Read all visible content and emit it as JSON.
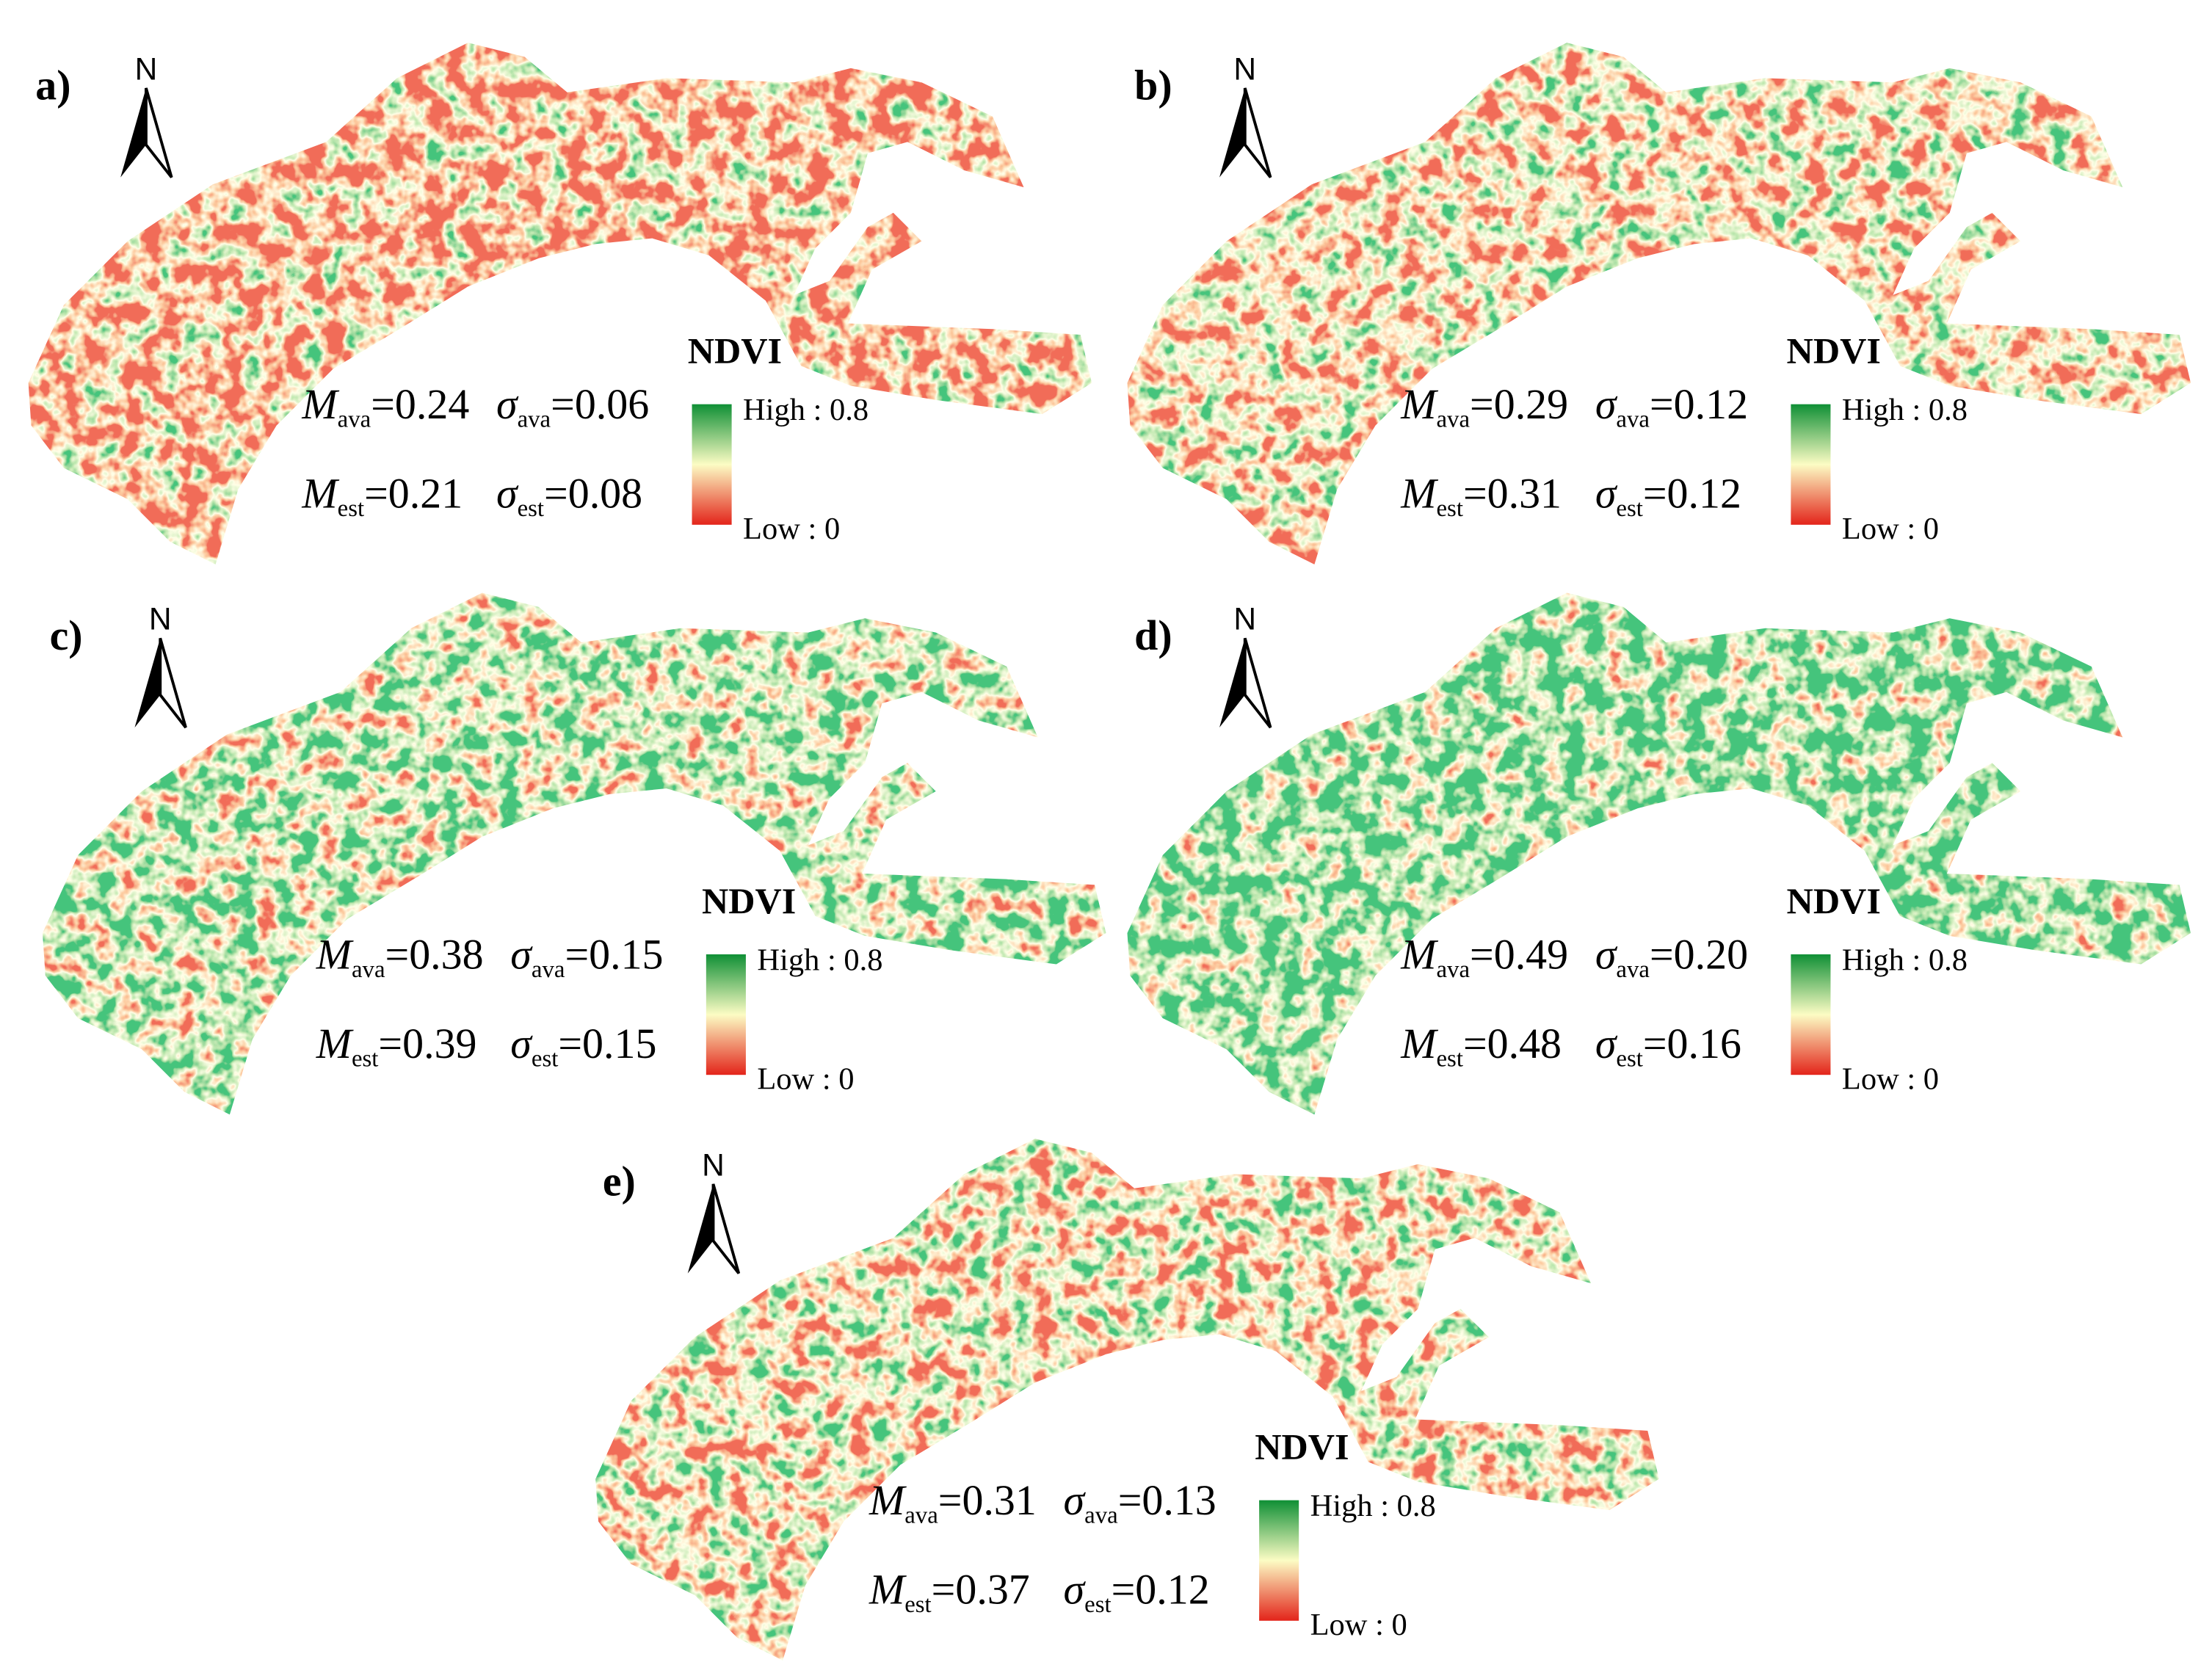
{
  "symbols": {
    "M": "M",
    "sigma": "σ",
    "ava": "ava",
    "est": "est",
    "equals": "="
  },
  "panels": [
    {
      "label": "a)",
      "north": "N",
      "legend": {
        "title": "NDVI",
        "high": "High : 0.8",
        "low": "Low : 0"
      },
      "stats": {
        "m_ava": "0.24",
        "s_ava": "0.06",
        "m_est": "0.21",
        "s_est": "0.08"
      }
    },
    {
      "label": "b)",
      "north": "N",
      "legend": {
        "title": "NDVI",
        "high": "High : 0.8",
        "low": "Low : 0"
      },
      "stats": {
        "m_ava": "0.29",
        "s_ava": "0.12",
        "m_est": "0.31",
        "s_est": "0.12"
      }
    },
    {
      "label": "c)",
      "north": "N",
      "legend": {
        "title": "NDVI",
        "high": "High : 0.8",
        "low": "Low : 0"
      },
      "stats": {
        "m_ava": "0.38",
        "s_ava": "0.15",
        "m_est": "0.39",
        "s_est": "0.15"
      }
    },
    {
      "label": "d)",
      "north": "N",
      "legend": {
        "title": "NDVI",
        "high": "High : 0.8",
        "low": "Low : 0"
      },
      "stats": {
        "m_ava": "0.49",
        "s_ava": "0.20",
        "m_est": "0.48",
        "s_est": "0.16"
      }
    },
    {
      "label": "e)",
      "north": "N",
      "legend": {
        "title": "NDVI",
        "high": "High : 0.8",
        "low": "Low : 0"
      },
      "stats": {
        "m_ava": "0.31",
        "s_ava": "0.13",
        "m_est": "0.37",
        "s_est": "0.12"
      }
    }
  ]
}
